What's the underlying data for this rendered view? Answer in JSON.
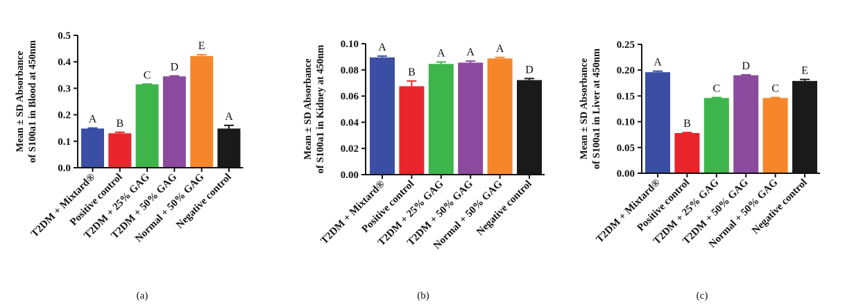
{
  "chart_data": [
    {
      "type": "bar",
      "panel_label": "(a)",
      "categories": [
        "T2DM + Mixtard®",
        "Positive control",
        "T2DM + 25% GAG",
        "T2DM + 50% GAG",
        "Normal + 50% GAG",
        "Negative control"
      ],
      "values": [
        0.148,
        0.13,
        0.315,
        0.345,
        0.422,
        0.148
      ],
      "errors": [
        0.002,
        0.004,
        0.001,
        0.002,
        0.005,
        0.012
      ],
      "letters": [
        "A",
        "B",
        "C",
        "D",
        "E",
        "A"
      ],
      "ylabel_line1": "Mean ± SD Absorbance",
      "ylabel_line2": "of S100a1 in Blood at 450nm",
      "ylim": [
        0,
        0.5
      ],
      "yticks": [
        "0.0",
        "0.1",
        "0.2",
        "0.3",
        "0.4",
        "0.5"
      ],
      "colors": [
        "#3a4fa3",
        "#e8262b",
        "#3db54a",
        "#8b4a9e",
        "#f7862b",
        "#1a1a1a"
      ]
    },
    {
      "type": "bar",
      "panel_label": "(b)",
      "categories": [
        "T2DM + Mixtard®",
        "Positive control",
        "T2DM + 25% GAG",
        "T2DM + 50% GAG",
        "Normal + 50% GAG",
        "Negative control"
      ],
      "values": [
        0.0895,
        0.0675,
        0.0845,
        0.0855,
        0.0887,
        0.0722
      ],
      "errors": [
        0.001,
        0.004,
        0.0015,
        0.0012,
        0.0008,
        0.0012
      ],
      "letters": [
        "A",
        "B",
        "A",
        "A",
        "A",
        "D"
      ],
      "ylabel_line1": "Mean ± SD Absorbance",
      "ylabel_line2": "of S100a1 in Kidney at 450nm",
      "ylim": [
        0,
        0.1
      ],
      "yticks": [
        "0.00",
        "0.02",
        "0.04",
        "0.06",
        "0.08",
        "0.10"
      ],
      "colors": [
        "#3a4fa3",
        "#e8262b",
        "#3db54a",
        "#8b4a9e",
        "#f7862b",
        "#1a1a1a"
      ]
    },
    {
      "type": "bar",
      "panel_label": "(c)",
      "categories": [
        "T2DM + Mixtard®",
        "Positive control",
        "T2DM + 25% GAG",
        "T2DM + 50% GAG",
        "Normal + 50% GAG",
        "Negative control"
      ],
      "values": [
        0.196,
        0.078,
        0.146,
        0.19,
        0.146,
        0.179
      ],
      "errors": [
        0.002,
        0.001,
        0.001,
        0.001,
        0.001,
        0.003
      ],
      "letters": [
        "A",
        "B",
        "C",
        "D",
        "C",
        "E"
      ],
      "ylabel_line1": "Mean ± SD Absorbance",
      "ylabel_line2": "of S100a1 in Liver at 450nm",
      "ylim": [
        0,
        0.25
      ],
      "yticks": [
        "0.00",
        "0.05",
        "0.10",
        "0.15",
        "0.20",
        "0.25"
      ],
      "colors": [
        "#3a4fa3",
        "#e8262b",
        "#3db54a",
        "#8b4a9e",
        "#f7862b",
        "#1a1a1a"
      ]
    }
  ]
}
